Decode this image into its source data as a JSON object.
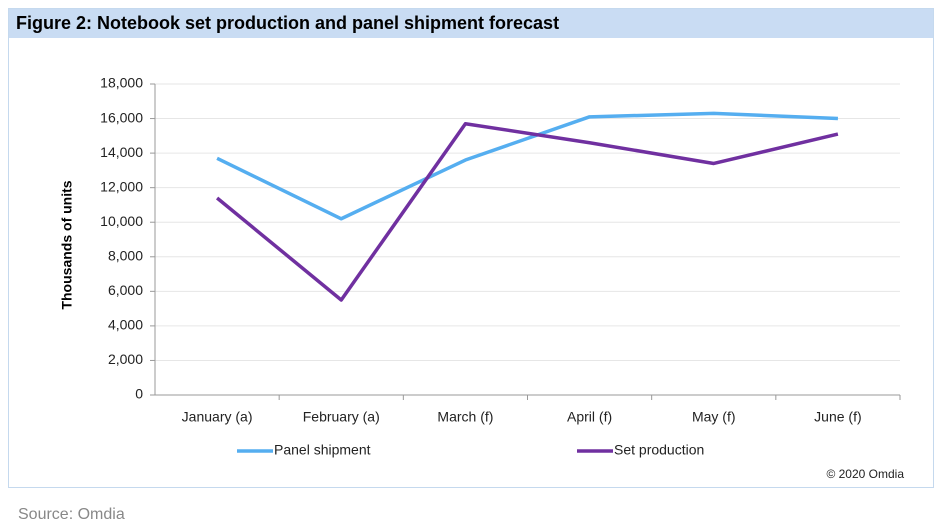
{
  "chart_data": {
    "type": "line",
    "title": "Figure 2: Notebook set production and panel shipment forecast",
    "y_label": "Thousands of units",
    "categories": [
      "January (a)",
      "February (a)",
      "March (f)",
      "April (f)",
      "May (f)",
      "June (f)"
    ],
    "series": [
      {
        "name": "Panel shipment",
        "color": "#55aef0",
        "values": [
          13700,
          10200,
          13600,
          16100,
          16300,
          16000
        ]
      },
      {
        "name": "Set production",
        "color": "#7030a0",
        "values": [
          11400,
          5500,
          15700,
          14600,
          13400,
          15100
        ]
      }
    ],
    "ylim": [
      0,
      18000
    ],
    "yticks": [
      0,
      {
        "value": 2000,
        "label": "2,000"
      },
      {
        "value": 4000,
        "label": "4,000"
      },
      {
        "value": 6000,
        "label": "6,000"
      },
      {
        "value": 8000,
        "label": "8,000"
      },
      {
        "value": 10000,
        "label": "10,000"
      },
      {
        "value": 12000,
        "label": "12,000"
      },
      {
        "value": 14000,
        "label": "14,000"
      },
      {
        "value": 16000,
        "label": "16,000"
      },
      {
        "value": 18000,
        "label": "18,000"
      }
    ],
    "grid": true,
    "legend": "bottom",
    "copyright": "© 2020 Omdia",
    "source": "Source: Omdia"
  }
}
